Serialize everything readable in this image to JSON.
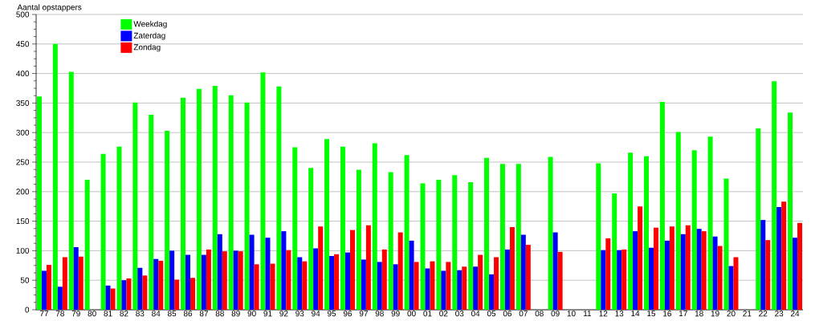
{
  "chart_data": {
    "type": "bar",
    "ylabel": "Aantal opstappers",
    "categories": [
      "77",
      "78",
      "79",
      "80",
      "81",
      "82",
      "83",
      "84",
      "85",
      "86",
      "87",
      "88",
      "89",
      "90",
      "91",
      "92",
      "93",
      "94",
      "95",
      "96",
      "97",
      "98",
      "99",
      "00",
      "01",
      "02",
      "03",
      "04",
      "05",
      "06",
      "07",
      "08",
      "09",
      "10",
      "11",
      "12",
      "13",
      "14",
      "15",
      "16",
      "17",
      "18",
      "19",
      "20",
      "21",
      "22",
      "23",
      "24"
    ],
    "series": [
      {
        "name": "Weekdag",
        "color": "#00ff00",
        "values": [
          361,
          450,
          403,
          220,
          264,
          276,
          351,
          330,
          303,
          359,
          374,
          379,
          363,
          351,
          402,
          378,
          275,
          240,
          289,
          276,
          237,
          282,
          233,
          262,
          214,
          220,
          228,
          216,
          257,
          247,
          247,
          null,
          259,
          null,
          null,
          248,
          197,
          266,
          260,
          352,
          301,
          270,
          293,
          222,
          null,
          307,
          387,
          334
        ]
      },
      {
        "name": "Zaterdag",
        "color": "#0000ff",
        "values": [
          66,
          39,
          106,
          null,
          41,
          50,
          71,
          86,
          100,
          93,
          93,
          128,
          100,
          127,
          122,
          133,
          89,
          104,
          91,
          97,
          85,
          81,
          77,
          117,
          70,
          66,
          67,
          73,
          60,
          102,
          127,
          null,
          131,
          null,
          null,
          101,
          101,
          133,
          105,
          117,
          128,
          137,
          124,
          74,
          null,
          152,
          174,
          122
        ]
      },
      {
        "name": "Zondag",
        "color": "#ff0000",
        "values": [
          76,
          89,
          90,
          null,
          36,
          53,
          58,
          83,
          51,
          54,
          102,
          99,
          99,
          77,
          78,
          101,
          82,
          141,
          94,
          135,
          143,
          102,
          131,
          81,
          82,
          81,
          73,
          93,
          89,
          140,
          110,
          null,
          98,
          null,
          null,
          121,
          102,
          175,
          139,
          141,
          143,
          133,
          108,
          89,
          null,
          118,
          183,
          147
        ]
      }
    ],
    "ylim": [
      0,
      500
    ],
    "yticks": [
      0,
      50,
      100,
      150,
      200,
      250,
      300,
      350,
      400,
      450,
      500
    ],
    "grid": "y",
    "legend": "top left"
  }
}
